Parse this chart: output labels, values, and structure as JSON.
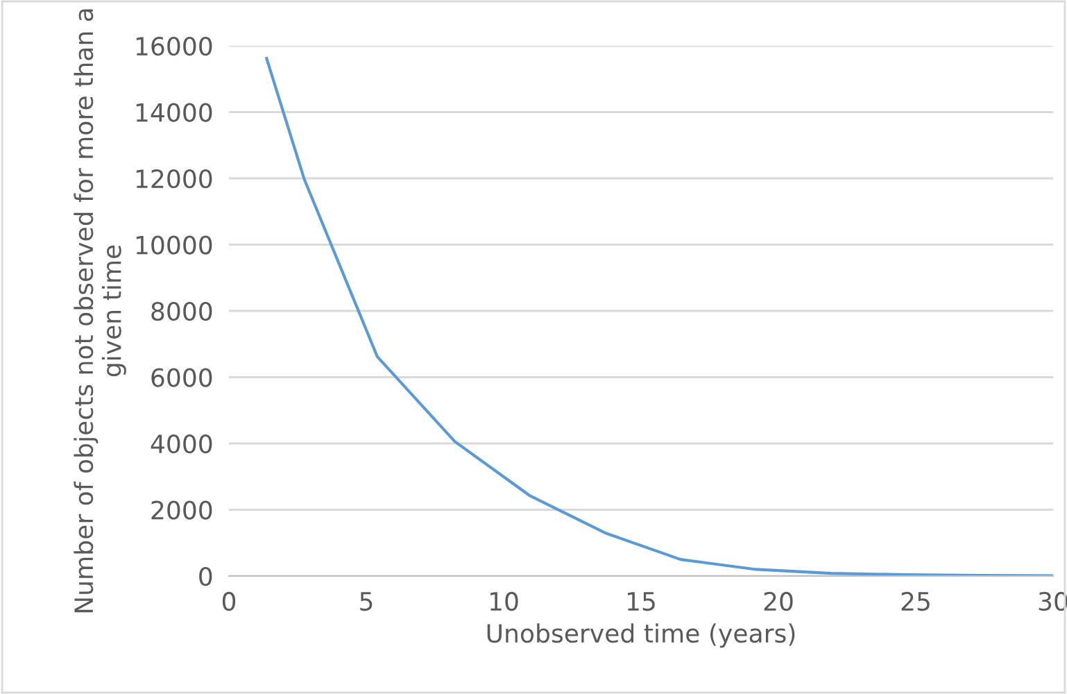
{
  "chart_data": {
    "type": "line",
    "xlabel": "Unobserved time (years)",
    "ylabel": "Number of objects not observed for more than a given time",
    "x": [
      1.37,
      2.74,
      5.4,
      8.22,
      10.96,
      13.7,
      16.44,
      19.18,
      21.92,
      24.66,
      27.4,
      30
    ],
    "series": [
      {
        "color": "#5b9bd5",
        "values": [
          15620,
          11980,
          6620,
          4060,
          2420,
          1300,
          500,
          200,
          80,
          40,
          20,
          10
        ]
      }
    ],
    "xlim": [
      0,
      30
    ],
    "xticks": [
      0,
      5,
      10,
      15,
      20,
      25,
      30
    ],
    "ylim": [
      0,
      16000
    ],
    "yticks": [
      0,
      2000,
      4000,
      6000,
      8000,
      10000,
      12000,
      14000,
      16000
    ],
    "grid": "y",
    "legend": false,
    "marker": "none",
    "line_style": "solid"
  }
}
